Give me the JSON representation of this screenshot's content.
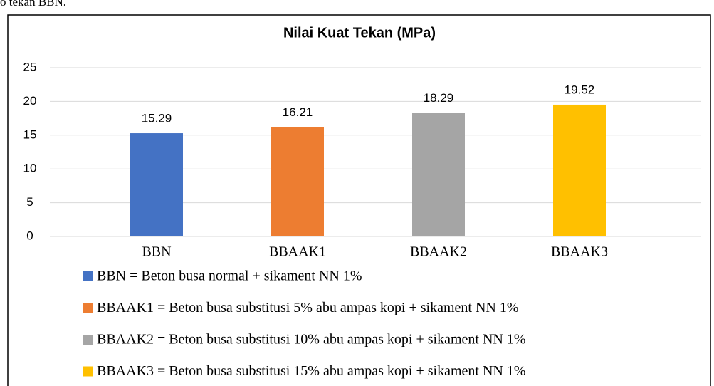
{
  "page_text": "o tekan BBN.",
  "chart_data": {
    "type": "bar",
    "title": "Nilai Kuat Tekan (MPa)",
    "categories": [
      "BBN",
      "BBAAK1",
      "BBAAK2",
      "BBAAK3"
    ],
    "values": [
      15.29,
      16.21,
      18.29,
      19.52
    ],
    "colors": [
      "#4472c4",
      "#ed7d31",
      "#a5a5a5",
      "#ffc000"
    ],
    "legend": [
      "BBN  = Beton busa normal + sikament NN 1%",
      "BBAAK1  = Beton busa substitusi 5% abu ampas kopi + sikament NN 1%",
      "BBAAK2  = Beton busa substitusi 10% abu ampas kopi + sikament NN 1%",
      "BBAAK3  = Beton busa substitusi 15% abu ampas kopi + sikament NN 1%"
    ],
    "ylim": [
      0,
      25
    ],
    "yticks": [
      0,
      5,
      10,
      15,
      20,
      25
    ],
    "grid": true
  }
}
